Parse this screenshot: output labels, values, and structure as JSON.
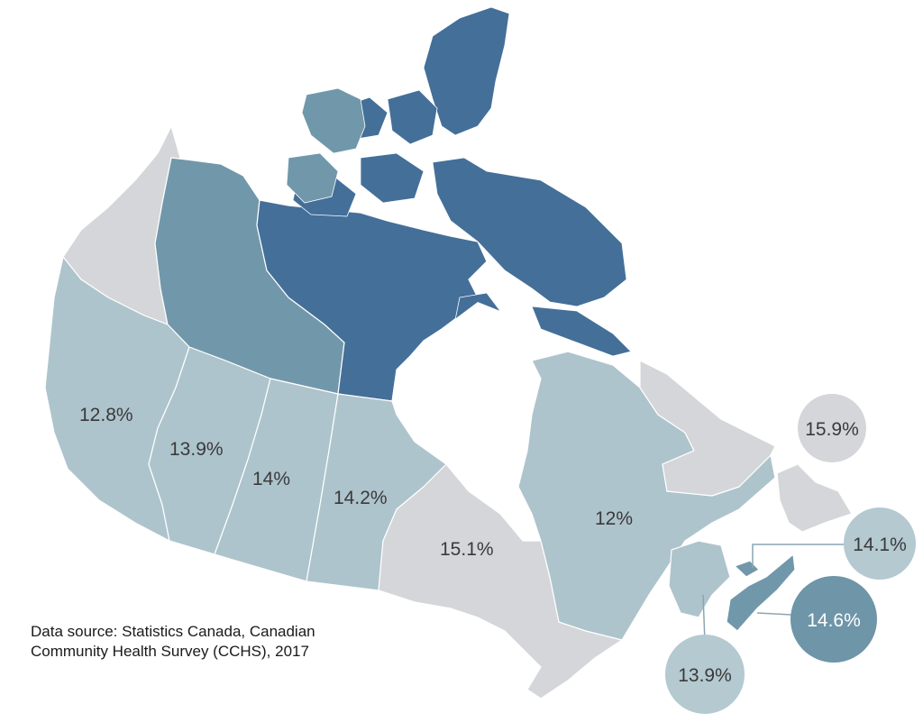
{
  "colors": {
    "grey": "#d4d6d9",
    "light": "#aec4cc",
    "medium": "#7198aa",
    "dark": "#446f99",
    "bubble_light": "#b4c9d0",
    "bubble_grey": "#d4d6d9",
    "bubble_dark": "#6e95a8"
  },
  "regions": {
    "yukon": {
      "value": ""
    },
    "northwest_territories": {
      "value": ""
    },
    "nunavut": {
      "value": ""
    },
    "british_columbia": {
      "value": "12.8%"
    },
    "alberta": {
      "value": "13.9%"
    },
    "saskatchewan": {
      "value": "14%"
    },
    "manitoba": {
      "value": "14.2%"
    },
    "ontario": {
      "value": "15.1%"
    },
    "quebec": {
      "value": "12%"
    },
    "newfoundland_and_labrador": {
      "value": "15.9%"
    },
    "prince_edward_island": {
      "value": "14.1%"
    },
    "nova_scotia": {
      "value": "14.6%"
    },
    "new_brunswick": {
      "value": "13.9%"
    }
  },
  "source_note": "Data source: Statistics Canada, Canadian Community Health Survey (CCHS), 2017"
}
